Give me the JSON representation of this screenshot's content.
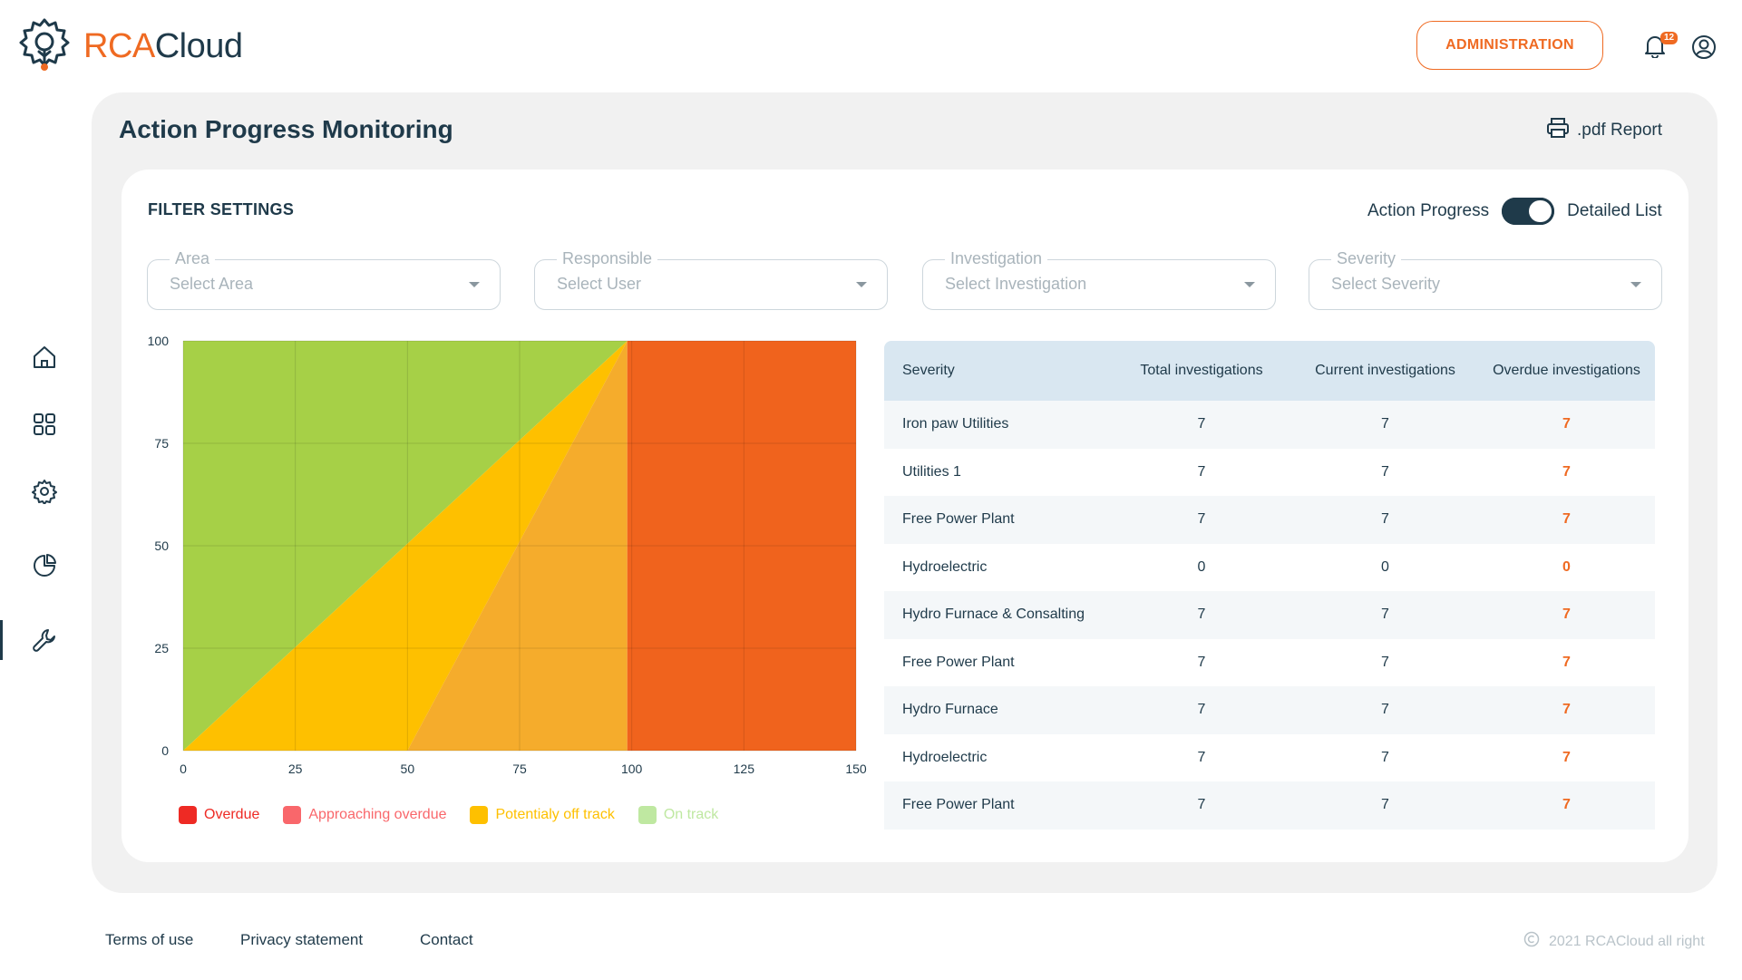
{
  "brand": {
    "name_part1": "RCA",
    "name_part2": "Cloud"
  },
  "header": {
    "admin_label": "ADMINISTRATION",
    "notification_count": "12"
  },
  "sidebar": {
    "items": [
      {
        "icon": "home-icon"
      },
      {
        "icon": "grid-icon"
      },
      {
        "icon": "gear-icon"
      },
      {
        "icon": "pie-chart-icon"
      },
      {
        "icon": "wrench-icon",
        "active": true
      }
    ]
  },
  "page": {
    "title": "Action Progress Monitoring",
    "pdf_report_label": ".pdf Report"
  },
  "filters": {
    "title": "FILTER SETTINGS",
    "toggle_left_label": "Action Progress",
    "toggle_right_label": "Detailed List",
    "area": {
      "label": "Area",
      "placeholder": "Select Area"
    },
    "responsible": {
      "label": "Responsible",
      "placeholder": "Select User"
    },
    "investigation": {
      "label": "Investigation",
      "placeholder": "Select Investigation"
    },
    "severity": {
      "label": "Severity",
      "placeholder": "Select Severity"
    }
  },
  "chart_data": {
    "type": "area",
    "x_ticks": [
      "0",
      "25",
      "50",
      "75",
      "100",
      "125",
      "150"
    ],
    "y_ticks": [
      "0",
      "25",
      "50",
      "75",
      "100"
    ],
    "xlim": [
      0,
      150
    ],
    "ylim": [
      0,
      100
    ],
    "grid": true,
    "regions": [
      {
        "name": "On track",
        "color": "#a6d047",
        "polygon": [
          [
            0,
            0
          ],
          [
            0,
            100
          ],
          [
            99,
            100
          ],
          [
            0,
            0
          ]
        ]
      },
      {
        "name": "Potentialy off track",
        "color": "#fec000",
        "polygon": [
          [
            0,
            0
          ],
          [
            99,
            100
          ],
          [
            50,
            0
          ]
        ]
      },
      {
        "name": "Approaching overdue",
        "color": "#f5ac2c",
        "polygon": [
          [
            50,
            0
          ],
          [
            99,
            100
          ],
          [
            99,
            0
          ]
        ]
      },
      {
        "name": "Overdue",
        "color": "#f0631d",
        "polygon": [
          [
            99,
            0
          ],
          [
            99,
            100
          ],
          [
            150,
            100
          ],
          [
            150,
            0
          ]
        ]
      }
    ],
    "legend": [
      {
        "label": "Overdue",
        "color": "#ee2a24"
      },
      {
        "label": "Approaching overdue",
        "color": "#f9676b"
      },
      {
        "label": "Potentialy off track",
        "color": "#fec000"
      },
      {
        "label": "On track",
        "color": "#bfe8a1"
      }
    ]
  },
  "table": {
    "headers": [
      "Severity",
      "Total investigations",
      "Current investigations",
      "Overdue investigations"
    ],
    "rows": [
      [
        "Iron paw Utilities",
        "7",
        "7",
        "7"
      ],
      [
        "Utilities 1",
        "7",
        "7",
        "7"
      ],
      [
        "Free Power Plant",
        "7",
        "7",
        "7"
      ],
      [
        "Hydroelectric",
        "0",
        "0",
        "0"
      ],
      [
        "Hydro Furnace & Consalting",
        "7",
        "7",
        "7"
      ],
      [
        "Free Power Plant",
        "7",
        "7",
        "7"
      ],
      [
        "Hydro Furnace",
        "7",
        "7",
        "7"
      ],
      [
        "Hydroelectric",
        "7",
        "7",
        "7"
      ],
      [
        "Free Power Plant",
        "7",
        "7",
        "7"
      ]
    ]
  },
  "footer": {
    "terms": "Terms of use",
    "privacy": "Privacy statement",
    "contact": "Contact",
    "copyright": "2021 RCACloud all right"
  }
}
